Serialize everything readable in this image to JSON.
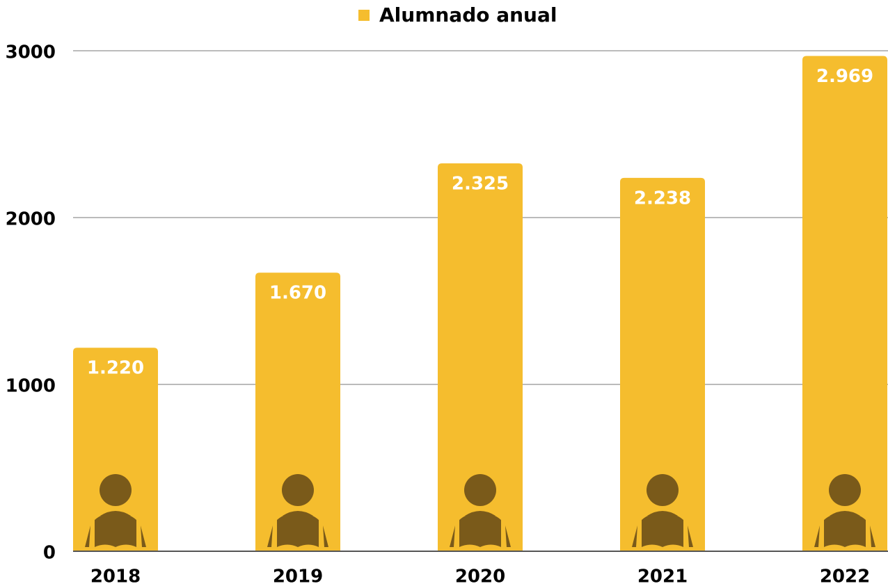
{
  "chart_data": {
    "type": "bar",
    "legend": "Alumnado anual",
    "categories": [
      "2018",
      "2019",
      "2020",
      "2021",
      "2022"
    ],
    "values": [
      1220,
      1670,
      2325,
      2238,
      2969
    ],
    "value_labels": [
      "1.220",
      "1.670",
      "2.325",
      "2.238",
      "2.969"
    ],
    "color": "#f5bd2e",
    "ylim": [
      0,
      3000
    ],
    "yticks": [
      0,
      1000,
      2000,
      3000
    ],
    "grid": true
  }
}
